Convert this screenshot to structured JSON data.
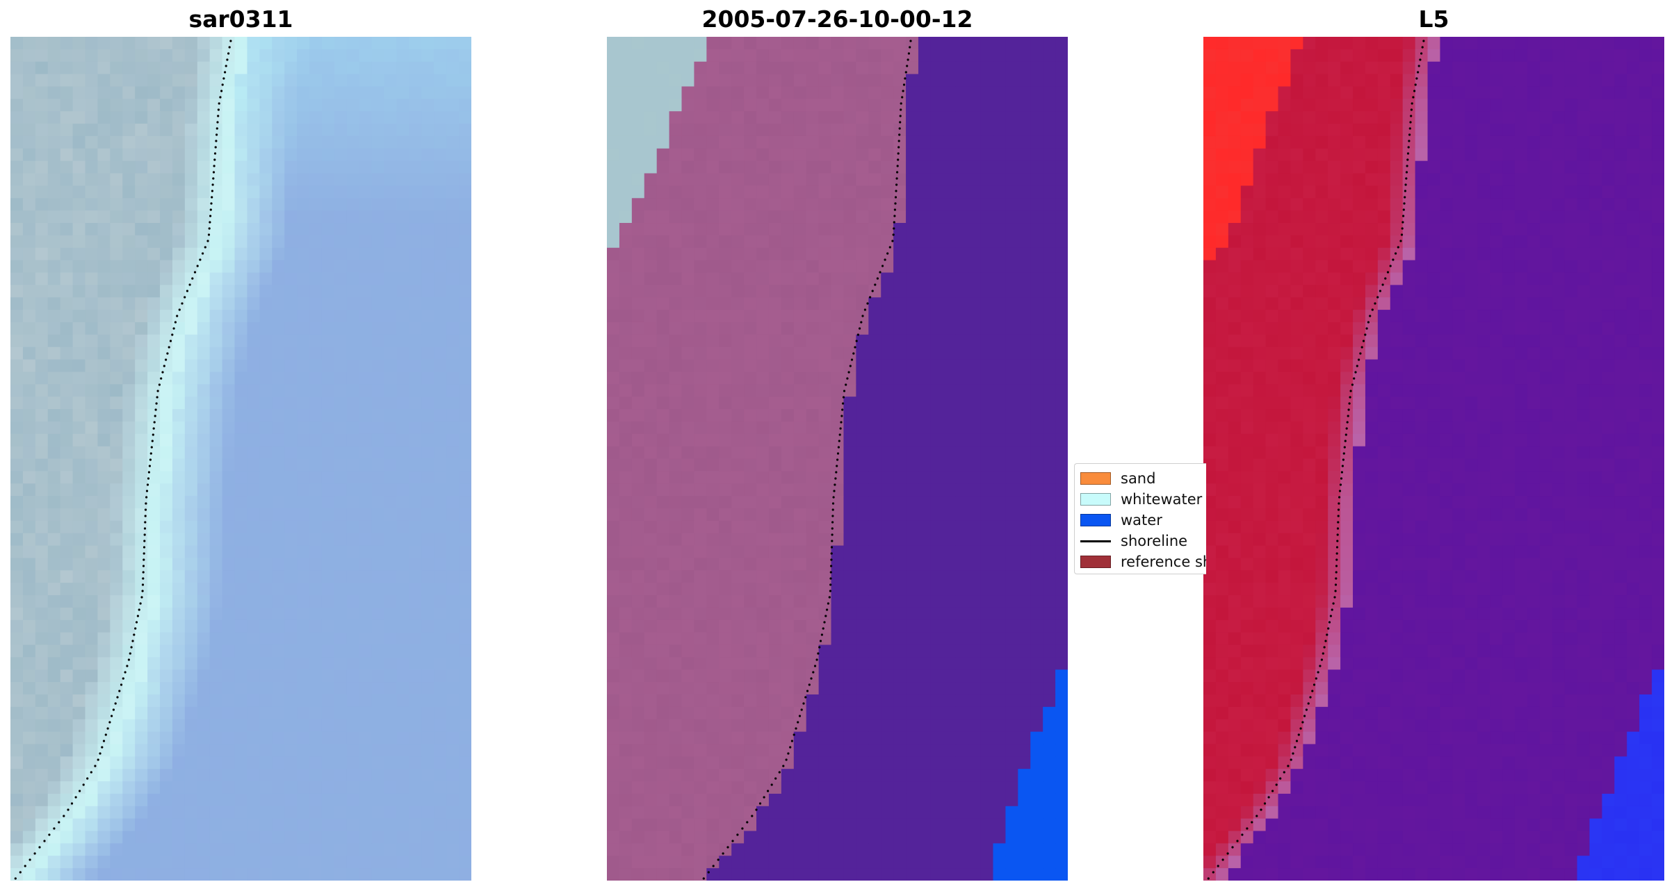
{
  "panels": [
    {
      "id": "rgb",
      "title": "sar0311"
    },
    {
      "id": "classified",
      "title": "2005-07-26-10-00-12"
    },
    {
      "id": "false-color",
      "title": "L5"
    }
  ],
  "legend": {
    "items": [
      {
        "label": "sand",
        "kind": "patch",
        "color": "#f98c3c"
      },
      {
        "label": "whitewater",
        "kind": "patch",
        "color": "#c8fbfb"
      },
      {
        "label": "water",
        "kind": "patch",
        "color": "#0a56f2"
      },
      {
        "label": "shoreline",
        "kind": "line",
        "color": "#000000"
      },
      {
        "label": "reference shoreline",
        "kind": "patch",
        "color": "#a03038"
      }
    ]
  },
  "colors": {
    "rgb_land": "#a6bfcc",
    "rgb_surf": "#c6f2f4",
    "rgb_water": "#8eb0e2",
    "rgb_water_top": "#a8e4f4",
    "class_land_light": "#a8c6cf",
    "class_land_pink": "#a05a8c",
    "class_water": "#54239a",
    "class_ocean_blue": "#0a56f2",
    "fc_land_bright": "#ff2a2a",
    "fc_land": "#c4163c",
    "fc_water": "#64169e",
    "fc_blue": "#2a36f4",
    "shoreline": "#000000"
  }
}
